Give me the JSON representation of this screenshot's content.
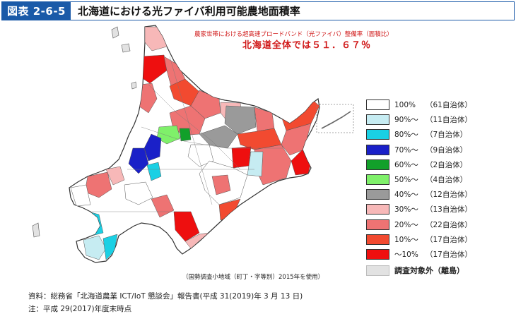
{
  "header": {
    "figure_number": "図表 2-6-5",
    "title": "北海道における光ファイバ利用可能農地面積率"
  },
  "map": {
    "subtitle_small": "農家世帯における超高速ブロードバンド（光ファイバ）整備率（面積比）",
    "subtitle_big": "北海道全体では５１．６７％",
    "note": "（国勢調査小地域（町丁・字等別）2015年を使用）"
  },
  "legend": {
    "items": [
      {
        "label": "100%",
        "count": "（61自治体）",
        "color": "#ffffff"
      },
      {
        "label": "90%～",
        "count": "（11自治体）",
        "color": "#c6ecf2"
      },
      {
        "label": "80%～",
        "count": "（7自治体）",
        "color": "#1ad0e4"
      },
      {
        "label": "70%～",
        "count": "（9自治体）",
        "color": "#1a20c8"
      },
      {
        "label": "60%～",
        "count": "（2自治体）",
        "color": "#12a02a"
      },
      {
        "label": "50%～",
        "count": "（4自治体）",
        "color": "#7ff06a"
      },
      {
        "label": "40%～",
        "count": "（12自治体）",
        "color": "#9a9a9a"
      },
      {
        "label": "30%～",
        "count": "（13自治体）",
        "color": "#f7b8b8"
      },
      {
        "label": "20%～",
        "count": "（22自治体）",
        "color": "#ee7373"
      },
      {
        "label": "10%～",
        "count": "（17自治体）",
        "color": "#f24a30"
      },
      {
        "label": "～10%",
        "count": "（17自治体）",
        "color": "#ee0f0f"
      }
    ],
    "other": {
      "label": "調査対象外（離島）",
      "color": "#e2e2e2"
    }
  },
  "footer": {
    "source": "資料：総務省「北海道農業 ICT/IoT 懇談会」報告書(平成 31(2019)年 3 月 13 日)",
    "note": "注：平成 29(2017)年度末時点"
  }
}
